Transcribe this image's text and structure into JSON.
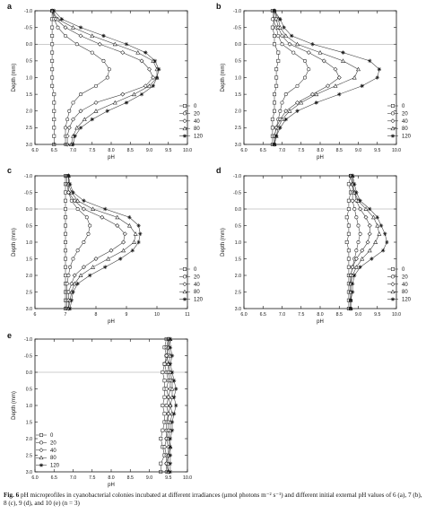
{
  "figure": {
    "caption_label": "Fig. 6",
    "caption_text": "pH microprofiles in cyanobacterial colonies incubated at different irradiances (μmol photons m⁻² s⁻¹) and different initial external pH values of 6 (a), 7 (b), 8 (c), 9 (d), and 10 (e) (n = 3)"
  },
  "legend_labels": [
    "0",
    "20",
    "40",
    "80",
    "120"
  ],
  "chart_data": [
    {
      "type": "line",
      "panel": "a",
      "xlabel": "pH",
      "ylabel": "Depth (mm)",
      "xlim": [
        6.0,
        10.0
      ],
      "ylim": [
        -1.0,
        3.0
      ],
      "xticks": [
        "6.0",
        "6.5",
        "7.0",
        "7.5",
        "8.0",
        "8.5",
        "9.0",
        "9.5",
        "10.0"
      ],
      "yticks": [
        "-1.0",
        "-0.5",
        "0.0",
        "0.5",
        "1.0",
        "1.5",
        "2.0",
        "2.5",
        "3.0"
      ],
      "y": [
        -1.0,
        -0.75,
        -0.5,
        -0.25,
        0.0,
        0.25,
        0.5,
        0.75,
        1.0,
        1.25,
        1.5,
        1.75,
        2.0,
        2.25,
        2.5,
        2.75,
        3.0
      ],
      "series": [
        {
          "name": "0",
          "values": [
            6.45,
            6.45,
            6.45,
            6.45,
            6.45,
            6.45,
            6.45,
            6.45,
            6.45,
            6.45,
            6.5,
            6.5,
            6.5,
            6.5,
            6.5,
            6.5,
            6.5
          ]
        },
        {
          "name": "20",
          "values": [
            6.45,
            6.5,
            6.6,
            6.8,
            7.1,
            7.5,
            7.8,
            7.95,
            7.9,
            7.6,
            7.2,
            7.0,
            6.9,
            6.85,
            6.8,
            6.8,
            6.8
          ]
        },
        {
          "name": "40",
          "values": [
            6.45,
            6.55,
            6.8,
            7.2,
            7.7,
            8.3,
            8.8,
            9.0,
            9.1,
            8.9,
            8.3,
            7.6,
            7.2,
            7.0,
            6.9,
            6.85,
            6.85
          ]
        },
        {
          "name": "80",
          "values": [
            6.45,
            6.6,
            7.0,
            7.5,
            8.1,
            8.7,
            9.1,
            9.2,
            9.2,
            9.0,
            8.6,
            8.1,
            7.6,
            7.3,
            7.1,
            7.0,
            6.95
          ]
        },
        {
          "name": "120",
          "values": [
            6.5,
            6.7,
            7.2,
            7.8,
            8.4,
            8.9,
            9.15,
            9.25,
            9.2,
            9.1,
            8.8,
            8.4,
            7.9,
            7.5,
            7.2,
            7.05,
            7.0
          ]
        }
      ]
    },
    {
      "type": "line",
      "panel": "b",
      "xlabel": "pH",
      "ylabel": "Depth (mm)",
      "xlim": [
        6.0,
        10.0
      ],
      "ylim": [
        -1.0,
        3.0
      ],
      "xticks": [
        "6.0",
        "6.5",
        "7.0",
        "7.5",
        "8.0",
        "8.5",
        "9.0",
        "9.5",
        "10.0"
      ],
      "yticks": [
        "-1.0",
        "-0.5",
        "0.0",
        "0.5",
        "1.0",
        "1.5",
        "2.0",
        "2.5",
        "3.0"
      ],
      "y": [
        -1.0,
        -0.75,
        -0.5,
        -0.25,
        0.0,
        0.25,
        0.5,
        0.75,
        1.0,
        1.25,
        1.5,
        1.75,
        2.0,
        2.25,
        2.5,
        2.75,
        3.0
      ],
      "series": [
        {
          "name": "0",
          "values": [
            6.75,
            6.8,
            6.75,
            6.8,
            6.8,
            6.9,
            6.9,
            6.85,
            6.85,
            6.85,
            6.8,
            6.8,
            6.8,
            6.75,
            6.75,
            6.75,
            6.75
          ]
        },
        {
          "name": "20",
          "values": [
            6.8,
            6.75,
            6.85,
            6.9,
            7.0,
            7.3,
            7.6,
            7.7,
            7.6,
            7.4,
            7.1,
            7.0,
            6.95,
            6.9,
            6.85,
            6.8,
            6.8
          ]
        },
        {
          "name": "40",
          "values": [
            6.8,
            6.85,
            6.9,
            7.0,
            7.2,
            7.7,
            8.1,
            8.4,
            8.5,
            8.2,
            7.8,
            7.4,
            7.1,
            6.95,
            6.85,
            6.8,
            6.8
          ]
        },
        {
          "name": "80",
          "values": [
            6.8,
            6.9,
            6.95,
            7.1,
            7.4,
            8.0,
            8.6,
            9.0,
            8.9,
            8.4,
            7.9,
            7.5,
            7.2,
            7.0,
            6.9,
            6.85,
            6.8
          ]
        },
        {
          "name": "120",
          "values": [
            6.8,
            6.95,
            7.05,
            7.25,
            7.8,
            8.6,
            9.3,
            9.55,
            9.5,
            9.1,
            8.5,
            7.9,
            7.4,
            7.1,
            6.95,
            6.85,
            6.8
          ]
        }
      ]
    },
    {
      "type": "line",
      "panel": "c",
      "xlabel": "pH",
      "ylabel": "Depth (mm)",
      "xlim": [
        6.0,
        11.0
      ],
      "ylim": [
        -1.0,
        3.0
      ],
      "xticks": [
        "6",
        "7",
        "8",
        "9",
        "10",
        "11"
      ],
      "yticks": [
        "-1.0",
        "-0.5",
        "0.0",
        "0.5",
        "1.0",
        "1.5",
        "2.0",
        "2.5",
        "3.0"
      ],
      "y": [
        -1.0,
        -0.75,
        -0.5,
        -0.25,
        0.0,
        0.25,
        0.5,
        0.75,
        1.0,
        1.25,
        1.5,
        1.75,
        2.0,
        2.25,
        2.5,
        2.75,
        3.0
      ],
      "series": [
        {
          "name": "0",
          "values": [
            7.0,
            7.0,
            7.0,
            7.0,
            7.0,
            7.0,
            7.0,
            7.0,
            7.0,
            7.0,
            7.0,
            7.0,
            7.0,
            7.0,
            7.0,
            7.0,
            7.0
          ]
        },
        {
          "name": "20",
          "values": [
            7.05,
            7.05,
            7.1,
            7.2,
            7.4,
            7.7,
            7.8,
            7.75,
            7.6,
            7.4,
            7.25,
            7.15,
            7.1,
            7.05,
            7.05,
            7.05,
            7.05
          ]
        },
        {
          "name": "40",
          "values": [
            7.1,
            7.1,
            7.1,
            7.3,
            7.6,
            8.2,
            8.7,
            8.95,
            8.9,
            8.5,
            8.0,
            7.6,
            7.3,
            7.2,
            7.1,
            7.1,
            7.1
          ]
        },
        {
          "name": "80",
          "values": [
            7.1,
            7.1,
            7.2,
            7.4,
            7.9,
            8.7,
            9.1,
            9.3,
            9.25,
            8.9,
            8.4,
            7.9,
            7.5,
            7.3,
            7.2,
            7.15,
            7.1
          ]
        },
        {
          "name": "120",
          "values": [
            7.1,
            7.15,
            7.25,
            7.6,
            8.3,
            9.1,
            9.4,
            9.45,
            9.4,
            9.2,
            8.8,
            8.3,
            7.8,
            7.4,
            7.25,
            7.2,
            7.15
          ]
        }
      ]
    },
    {
      "type": "line",
      "panel": "d",
      "xlabel": "pH",
      "ylabel": "Depth (mm)",
      "xlim": [
        6.0,
        10.0
      ],
      "ylim": [
        -1.0,
        3.0
      ],
      "xticks": [
        "6.0",
        "6.5",
        "7.0",
        "7.5",
        "8.0",
        "8.5",
        "9.0",
        "9.5",
        "10.0"
      ],
      "yticks": [
        "-1.0",
        "-0.5",
        "0.0",
        "0.5",
        "1.0",
        "1.5",
        "2.0",
        "2.5",
        "3.0"
      ],
      "y": [
        -1.0,
        -0.75,
        -0.5,
        -0.25,
        0.0,
        0.25,
        0.5,
        0.75,
        1.0,
        1.25,
        1.5,
        1.75,
        2.0,
        2.25,
        2.5,
        2.75,
        3.0
      ],
      "series": [
        {
          "name": "0",
          "values": [
            8.8,
            8.75,
            8.8,
            8.75,
            8.75,
            8.7,
            8.75,
            8.75,
            8.7,
            8.75,
            8.75,
            8.75,
            8.75,
            8.75,
            8.75,
            8.75,
            8.75
          ]
        },
        {
          "name": "20",
          "values": [
            8.8,
            8.85,
            8.85,
            8.85,
            8.9,
            8.95,
            9.0,
            9.05,
            9.0,
            8.95,
            8.9,
            8.85,
            8.8,
            8.8,
            8.8,
            8.8,
            8.8
          ]
        },
        {
          "name": "40",
          "values": [
            8.8,
            8.85,
            8.9,
            8.95,
            9.05,
            9.2,
            9.3,
            9.3,
            9.25,
            9.1,
            8.95,
            8.85,
            8.8,
            8.8,
            8.8,
            8.8,
            8.8
          ]
        },
        {
          "name": "80",
          "values": [
            8.85,
            8.85,
            8.9,
            9.0,
            9.2,
            9.4,
            9.5,
            9.55,
            9.45,
            9.3,
            9.1,
            8.95,
            8.85,
            8.8,
            8.8,
            8.8,
            8.8
          ]
        },
        {
          "name": "120",
          "values": [
            8.85,
            8.9,
            8.95,
            9.05,
            9.3,
            9.5,
            9.6,
            9.7,
            9.75,
            9.65,
            9.35,
            9.05,
            8.9,
            8.85,
            8.85,
            8.8,
            8.8
          ]
        }
      ]
    },
    {
      "type": "line",
      "panel": "e",
      "xlabel": "pH",
      "ylabel": "Depth (mm)",
      "xlim": [
        6.0,
        10.0
      ],
      "ylim": [
        -1.0,
        3.0
      ],
      "xticks": [
        "6.0",
        "6.5",
        "7.0",
        "7.5",
        "8.0",
        "8.5",
        "9.0",
        "9.5",
        "10.0"
      ],
      "yticks": [
        "-1.0",
        "-0.5",
        "0.0",
        "0.5",
        "1.0",
        "1.5",
        "2.0",
        "2.5",
        "3.0"
      ],
      "y": [
        -1.0,
        -0.75,
        -0.5,
        -0.25,
        0.0,
        0.25,
        0.5,
        0.75,
        1.0,
        1.25,
        1.5,
        1.75,
        2.0,
        2.25,
        2.5,
        2.75,
        3.0
      ],
      "series": [
        {
          "name": "0",
          "values": [
            9.45,
            9.4,
            9.45,
            9.4,
            9.35,
            9.4,
            9.4,
            9.4,
            9.35,
            9.4,
            9.4,
            9.35,
            9.3,
            9.35,
            9.4,
            9.3,
            9.3
          ]
        },
        {
          "name": "20",
          "values": [
            9.5,
            9.45,
            9.5,
            9.4,
            9.45,
            9.5,
            9.45,
            9.5,
            9.45,
            9.5,
            9.45,
            9.45,
            9.45,
            9.4,
            9.45,
            9.45,
            9.45
          ]
        },
        {
          "name": "40",
          "values": [
            9.5,
            9.5,
            9.45,
            9.5,
            9.5,
            9.55,
            9.55,
            9.5,
            9.55,
            9.5,
            9.5,
            9.5,
            9.45,
            9.5,
            9.5,
            9.45,
            9.5
          ]
        },
        {
          "name": "80",
          "values": [
            9.55,
            9.5,
            9.55,
            9.5,
            9.55,
            9.6,
            9.6,
            9.6,
            9.55,
            9.6,
            9.55,
            9.55,
            9.5,
            9.55,
            9.5,
            9.5,
            9.5
          ]
        },
        {
          "name": "120",
          "values": [
            9.55,
            9.55,
            9.6,
            9.55,
            9.6,
            9.65,
            9.7,
            9.65,
            9.7,
            9.65,
            9.6,
            9.6,
            9.55,
            9.55,
            9.55,
            9.55,
            9.55
          ]
        }
      ]
    }
  ]
}
